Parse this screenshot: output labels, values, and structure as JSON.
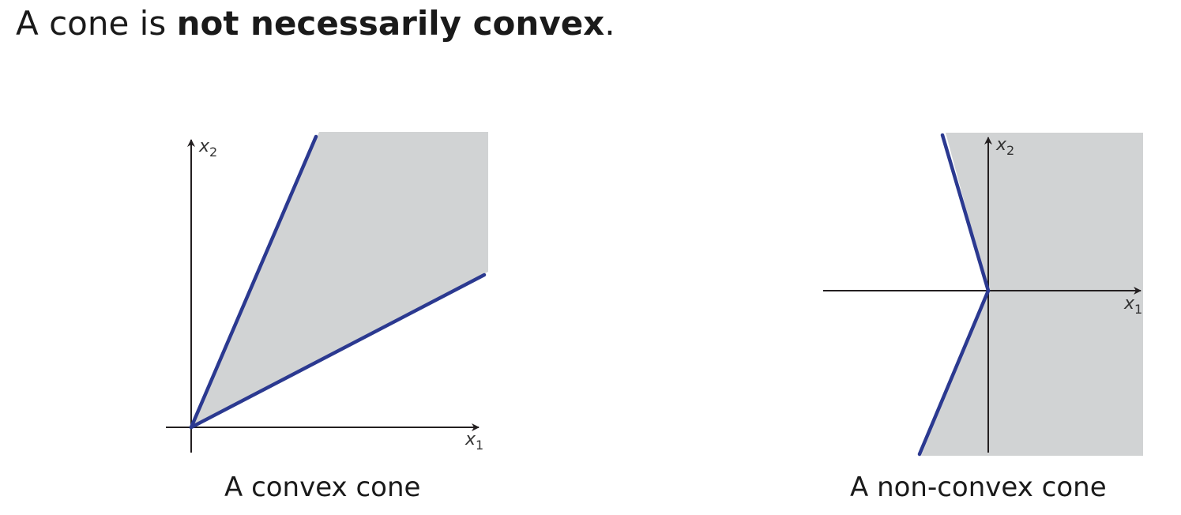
{
  "slide": {
    "headline_prefix": "A cone is ",
    "headline_bold": "not necessarily convex",
    "headline_suffix": "."
  },
  "figures": [
    {
      "caption": "A convex cone",
      "axis_x_label": "x",
      "axis_x_subscript": "1",
      "axis_y_label": "x",
      "axis_y_subscript": "2"
    },
    {
      "caption": "A non-convex cone",
      "axis_x_label": "x",
      "axis_x_subscript": "1",
      "axis_y_label": "x",
      "axis_y_subscript": "2"
    }
  ],
  "colors": {
    "region_fill": "#d1d3d4",
    "boundary_ray": "#2b3990",
    "axis": "#231f20"
  }
}
